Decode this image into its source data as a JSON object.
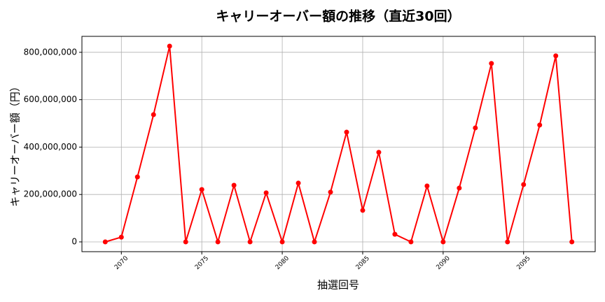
{
  "chart_data": {
    "type": "line",
    "title": "キャリーオーバー額の推移（直近30回）",
    "x_label": "抽選回号",
    "y_label": "キャリーオーバー額（円）",
    "x": [
      2069,
      2070,
      2071,
      2072,
      2073,
      2074,
      2075,
      2076,
      2077,
      2078,
      2079,
      2080,
      2081,
      2082,
      2083,
      2084,
      2085,
      2086,
      2087,
      2088,
      2089,
      2090,
      2091,
      2092,
      2093,
      2094,
      2095,
      2096,
      2097,
      2098
    ],
    "series": [
      {
        "color": "#ff0000",
        "values": [
          0,
          20000000,
          274000000,
          537000000,
          826000000,
          0,
          221000000,
          0,
          239000000,
          0,
          207000000,
          0,
          248000000,
          0,
          210000000,
          463000000,
          133000000,
          378000000,
          32000000,
          0,
          236000000,
          0,
          227000000,
          481000000,
          753000000,
          0,
          242000000,
          493000000,
          785000000,
          0
        ]
      }
    ],
    "xlim": [
      2067.55,
      2099.45
    ],
    "xticks": [
      2070,
      2075,
      2080,
      2085,
      2090,
      2095
    ],
    "ylim": [
      -41300000,
      867300000
    ],
    "yticks": [
      0,
      {
        "value": 200000000,
        "label": "200,000,000"
      },
      {
        "value": 400000000,
        "label": "400,000,000"
      },
      {
        "value": 600000000,
        "label": "600,000,000"
      },
      {
        "value": 800000000,
        "label": "800,000,000"
      }
    ],
    "grid": true
  }
}
